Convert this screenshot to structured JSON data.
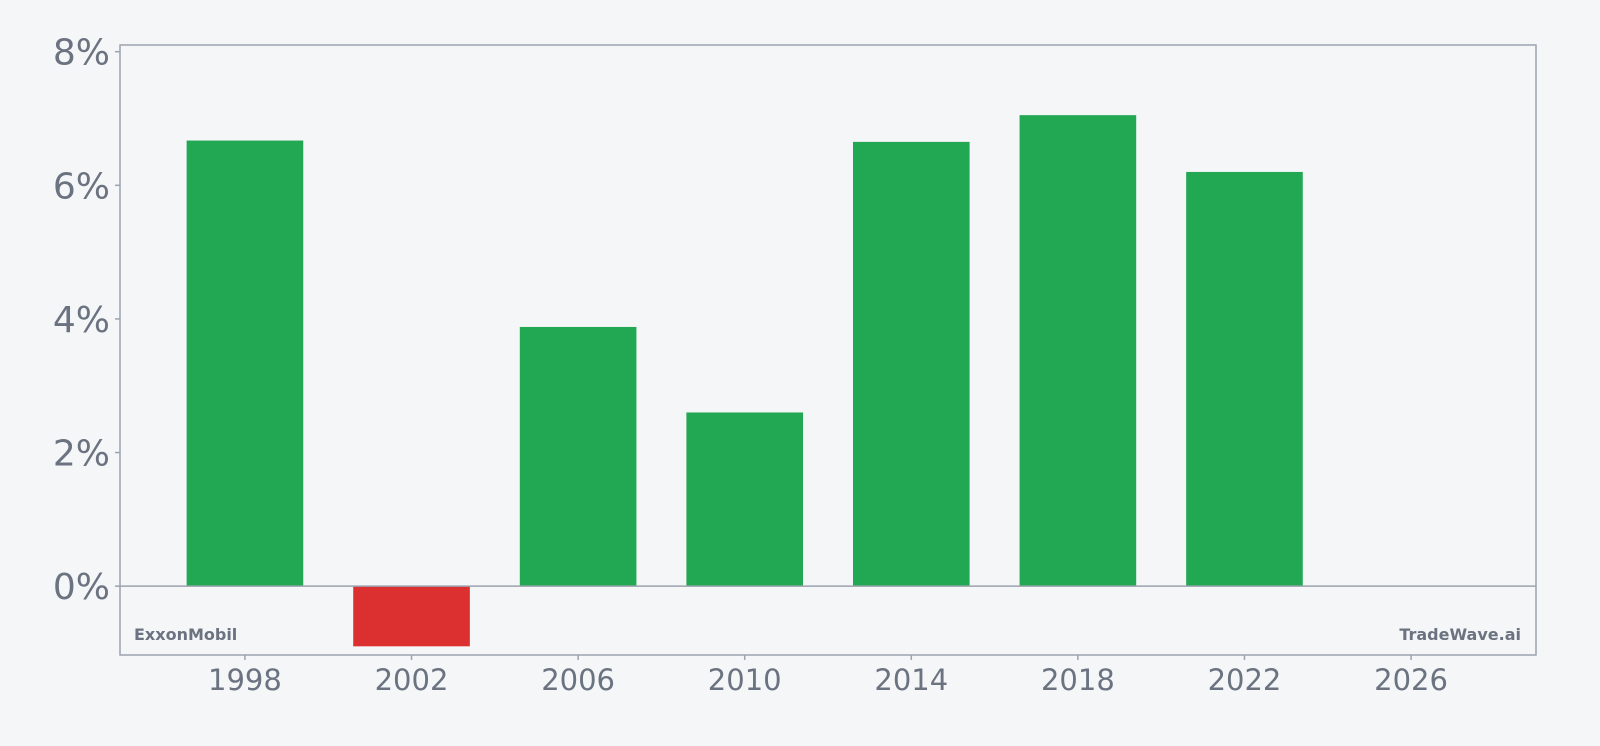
{
  "chart_data": {
    "type": "bar",
    "x": [
      1998,
      2002,
      2006,
      2010,
      2014,
      2018,
      2022
    ],
    "values": [
      6.67,
      -0.9,
      3.88,
      2.6,
      6.65,
      7.05,
      6.2
    ],
    "xlim": [
      1995,
      2029
    ],
    "ylim": [
      -1.03,
      8.1
    ],
    "x_ticks": [
      1998,
      2002,
      2006,
      2010,
      2014,
      2018,
      2022,
      2026
    ],
    "x_tick_labels": [
      "1998",
      "2002",
      "2006",
      "2010",
      "2014",
      "2018",
      "2022",
      "2026"
    ],
    "y_ticks": [
      0,
      2,
      4,
      6,
      8
    ],
    "y_tick_labels": [
      "0%",
      "2%",
      "4%",
      "6%",
      "8%"
    ],
    "title": "",
    "xlabel": "",
    "ylabel": "",
    "grid": false,
    "colors": {
      "positive": "#22a753",
      "negative": "#dc3030",
      "axis": "#9ca3af",
      "text": "#6b7280"
    }
  },
  "watermarks": {
    "left": "ExxonMobil",
    "right": "TradeWave.ai"
  }
}
